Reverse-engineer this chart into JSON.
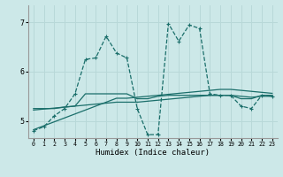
{
  "xlabel": "Humidex (Indice chaleur)",
  "bg_color": "#cce8e8",
  "grid_color": "#b8d8d8",
  "line_color": "#1a6e6a",
  "xlim": [
    -0.5,
    23.5
  ],
  "ylim": [
    4.65,
    7.35
  ],
  "yticks": [
    5,
    6,
    7
  ],
  "xticks": [
    0,
    1,
    2,
    3,
    4,
    5,
    6,
    7,
    8,
    9,
    10,
    11,
    12,
    13,
    14,
    15,
    16,
    17,
    18,
    19,
    20,
    21,
    22,
    23
  ],
  "series": [
    {
      "x": [
        0,
        1,
        2,
        3,
        4,
        5,
        6,
        7,
        8,
        9,
        10,
        11,
        12,
        13,
        14,
        15,
        16,
        17,
        18,
        19,
        20,
        21,
        22,
        23
      ],
      "y": [
        4.82,
        4.9,
        4.98,
        5.06,
        5.14,
        5.22,
        5.3,
        5.38,
        5.46,
        5.46,
        5.48,
        5.5,
        5.52,
        5.54,
        5.56,
        5.58,
        5.6,
        5.62,
        5.64,
        5.64,
        5.62,
        5.6,
        5.58,
        5.56
      ],
      "style": "-",
      "marker": null,
      "lw": 0.9
    },
    {
      "x": [
        0,
        1,
        2,
        3,
        4,
        5,
        6,
        7,
        8,
        9,
        10,
        11,
        12,
        13,
        14,
        15,
        16,
        17,
        18,
        19,
        20,
        21,
        22,
        23
      ],
      "y": [
        5.22,
        5.24,
        5.26,
        5.28,
        5.3,
        5.32,
        5.34,
        5.36,
        5.38,
        5.38,
        5.38,
        5.4,
        5.42,
        5.44,
        5.46,
        5.48,
        5.5,
        5.52,
        5.52,
        5.52,
        5.5,
        5.48,
        5.5,
        5.5
      ],
      "style": "-",
      "marker": null,
      "lw": 0.9
    },
    {
      "x": [
        0,
        1,
        2,
        3,
        4,
        5,
        6,
        7,
        8,
        9,
        10,
        11,
        12,
        13,
        14,
        15,
        16,
        17,
        18,
        19,
        20,
        21,
        22,
        23
      ],
      "y": [
        5.25,
        5.25,
        5.25,
        5.28,
        5.3,
        5.55,
        5.55,
        5.55,
        5.55,
        5.55,
        5.45,
        5.45,
        5.5,
        5.52,
        5.52,
        5.52,
        5.52,
        5.52,
        5.52,
        5.52,
        5.45,
        5.45,
        5.52,
        5.52
      ],
      "style": "-",
      "marker": null,
      "lw": 0.9
    },
    {
      "x": [
        0,
        1,
        2,
        3,
        4,
        5,
        6,
        7,
        8,
        9,
        10,
        11,
        12,
        13,
        14,
        15,
        16,
        17,
        18,
        19,
        20,
        21,
        22,
        23
      ],
      "y": [
        4.8,
        4.88,
        5.1,
        5.25,
        5.55,
        6.25,
        6.28,
        6.72,
        6.38,
        6.28,
        5.25,
        4.72,
        4.72,
        6.98,
        6.62,
        6.95,
        6.88,
        5.55,
        5.52,
        5.52,
        5.3,
        5.25,
        5.52,
        5.5
      ],
      "style": "--",
      "marker": "+",
      "lw": 0.9
    }
  ]
}
